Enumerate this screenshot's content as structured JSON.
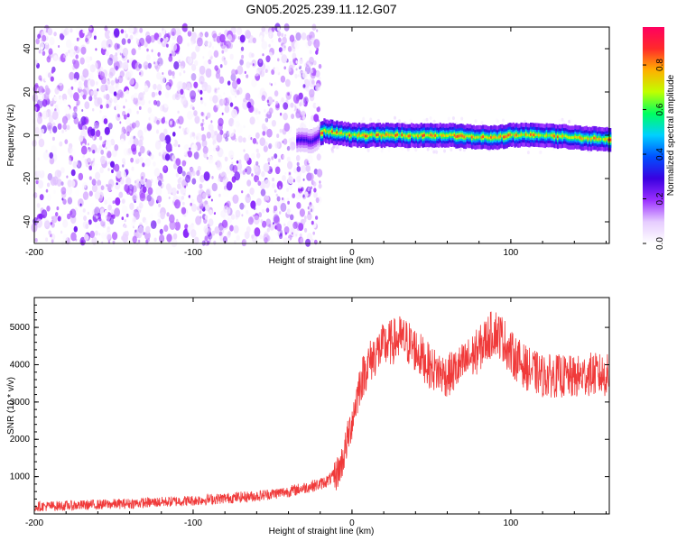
{
  "figure": {
    "title": "GN05.2025.239.11.12.G07"
  },
  "colors": {
    "snr_line": "#f03a3a",
    "low_amp": "#9b30ff",
    "frame": "#000000"
  },
  "colormap": [
    "#ffffff",
    "#e6ccff",
    "#9b30ff",
    "#3a00e0",
    "#0050ff",
    "#00d0ff",
    "#00ff60",
    "#c0ff00",
    "#ffb000",
    "#ff2a2a",
    "#ff0060"
  ],
  "chart_data": [
    {
      "type": "heatmap",
      "title": "",
      "xlabel": "Height of straight line (km)",
      "ylabel": "Frequency (Hz)",
      "xlim": [
        -200,
        162
      ],
      "ylim": [
        -50,
        50
      ],
      "xticks": [
        -200,
        -100,
        0,
        100
      ],
      "yticks": [
        -40,
        -20,
        0,
        20,
        40
      ],
      "colorbar": {
        "label": "Normalized spectral amplitude",
        "range": [
          0,
          0.97
        ],
        "ticks": [
          0.0,
          0.2,
          0.4,
          0.6,
          0.8
        ]
      },
      "noise_region_x": [
        -200,
        -20
      ],
      "noise_amplitude": 0.25,
      "ridge": {
        "x": [
          -35,
          -25,
          -18,
          -10,
          0,
          20,
          40,
          60,
          80,
          90,
          100,
          120,
          140,
          162
        ],
        "frequency": [
          -2,
          -3,
          2,
          1,
          0,
          0,
          0,
          0,
          -1,
          -1,
          0,
          0,
          -1,
          -2
        ],
        "peak_amplitude": 0.9
      }
    },
    {
      "type": "line",
      "title": "",
      "xlabel": "Height of straight line (km)",
      "ylabel": "SNR (10 * v/v)",
      "xlim": [
        -200,
        162
      ],
      "ylim": [
        0,
        5800
      ],
      "xticks": [
        -200,
        -100,
        0,
        100
      ],
      "yticks": [
        1000,
        2000,
        3000,
        4000,
        5000
      ],
      "series": [
        {
          "x": [
            -200,
            -180,
            -160,
            -140,
            -120,
            -100,
            -80,
            -60,
            -40,
            -30,
            -20,
            -15,
            -10,
            -7,
            -5,
            0,
            5,
            10,
            15,
            20,
            25,
            30,
            35,
            40,
            50,
            60,
            70,
            80,
            85,
            90,
            95,
            100,
            110,
            120,
            130,
            140,
            150,
            162
          ],
          "values": [
            200,
            220,
            250,
            280,
            320,
            360,
            420,
            480,
            600,
            700,
            800,
            900,
            1050,
            1300,
            1600,
            2500,
            3500,
            4000,
            4300,
            4500,
            4600,
            4700,
            4600,
            4400,
            3900,
            3700,
            4000,
            4400,
            4700,
            4900,
            4700,
            4300,
            3900,
            3700,
            3700,
            3650,
            3750,
            3700
          ],
          "noise_spread": 500
        }
      ]
    }
  ]
}
